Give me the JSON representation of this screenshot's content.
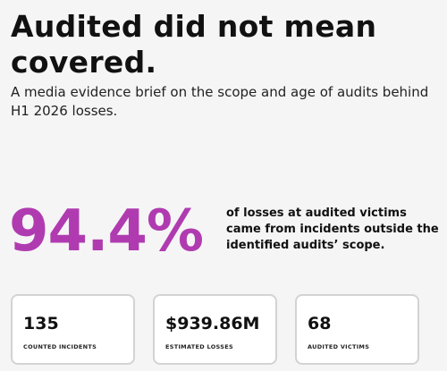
{
  "header": {
    "title": "Audited did not mean covered.",
    "subtitle": "A media evidence brief on the scope and age of audits behind H1 2026 losses."
  },
  "highlight": {
    "value": "94.4%",
    "text": "of losses at audited victims came from incidents outside the identified audits’ scope."
  },
  "stats": [
    {
      "value": "135",
      "label": "COUNTED INCIDENTS"
    },
    {
      "value": "$939.86M",
      "label": "ESTIMATED LOSSES"
    },
    {
      "value": "68",
      "label": "AUDITED VICTIMS"
    }
  ]
}
